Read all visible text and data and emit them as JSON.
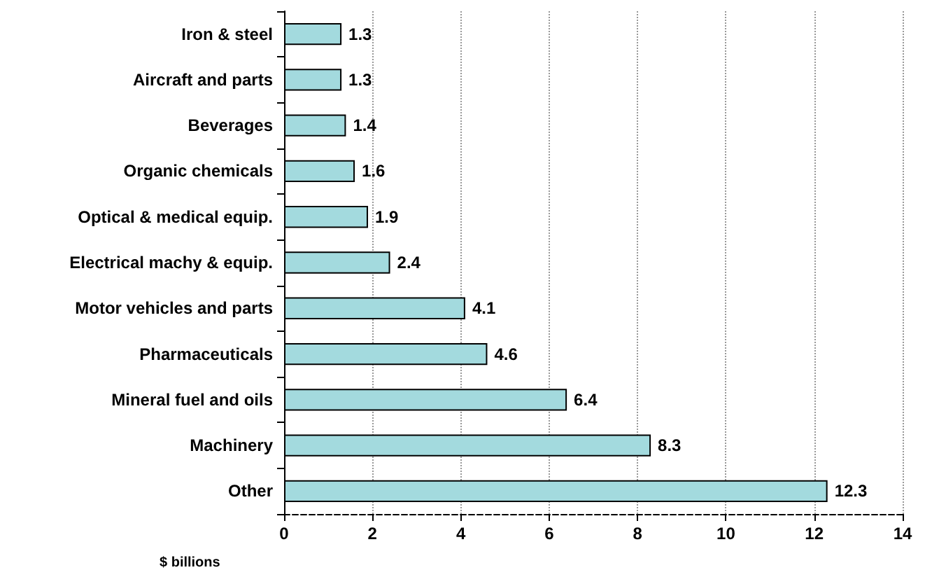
{
  "chart_data": {
    "type": "bar",
    "orientation": "horizontal",
    "xlabel": "$ billions",
    "categories": [
      "Iron & steel",
      "Aircraft and parts",
      "Beverages",
      "Organic chemicals",
      "Optical & medical equip.",
      "Electrical machy & equip.",
      "Motor vehicles and parts",
      "Pharmaceuticals",
      "Mineral fuel and oils",
      "Machinery",
      "Other"
    ],
    "values": [
      1.3,
      1.3,
      1.4,
      1.6,
      1.9,
      2.4,
      4.1,
      4.6,
      6.4,
      8.3,
      12.3
    ],
    "color": "#a3dade",
    "xlim": [
      0,
      14
    ],
    "xticks": [
      0,
      2,
      4,
      6,
      8,
      10,
      12,
      14
    ],
    "grid": "x",
    "data_labels": true
  }
}
